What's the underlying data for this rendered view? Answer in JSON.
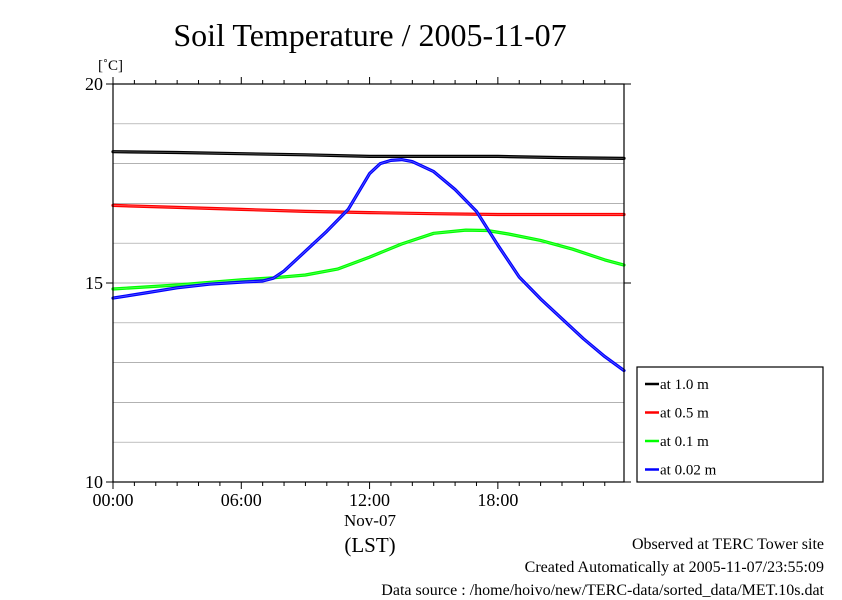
{
  "chart_data": {
    "type": "line",
    "title": "Soil Temperature / 2005-11-07",
    "ylabel": "[˚C]",
    "xlabel": "(LST)",
    "date_label": "Nov-07",
    "ylim": [
      10,
      20
    ],
    "yticks": [
      10,
      15,
      20
    ],
    "ygrid": [
      11,
      12,
      13,
      14,
      16,
      17,
      18,
      19
    ],
    "xlim": [
      0,
      23.9
    ],
    "xticks": [
      {
        "hour": 0,
        "label": "00:00"
      },
      {
        "hour": 6,
        "label": "06:00"
      },
      {
        "hour": 12,
        "label": "12:00"
      },
      {
        "hour": 18,
        "label": "18:00"
      }
    ],
    "legend_position": "right",
    "series": [
      {
        "name": "at 1.0 m",
        "color": "#000000",
        "x": [
          0,
          3,
          6,
          9,
          12,
          15,
          18,
          21,
          23.9
        ],
        "y": [
          18.3,
          18.28,
          18.25,
          18.22,
          18.18,
          18.18,
          18.18,
          18.15,
          18.13
        ]
      },
      {
        "name": "at 0.5 m",
        "color": "#ff0000",
        "x": [
          0,
          3,
          6,
          9,
          12,
          15,
          18,
          21,
          23.9
        ],
        "y": [
          16.95,
          16.9,
          16.85,
          16.8,
          16.77,
          16.74,
          16.72,
          16.72,
          16.72
        ]
      },
      {
        "name": "at 0.1 m",
        "color": "#00ff00",
        "x": [
          0,
          3,
          6,
          7.5,
          9,
          10.5,
          12,
          13.5,
          15,
          16.5,
          17.5,
          18.5,
          20,
          21.5,
          23,
          23.9
        ],
        "y": [
          14.85,
          14.95,
          15.08,
          15.13,
          15.2,
          15.35,
          15.65,
          15.98,
          16.25,
          16.33,
          16.32,
          16.23,
          16.07,
          15.85,
          15.58,
          15.45
        ]
      },
      {
        "name": "at 0.02 m",
        "color": "#0000ff",
        "x": [
          0,
          1.5,
          3,
          4.5,
          6,
          7,
          7.5,
          8,
          9,
          10,
          11,
          12,
          12.5,
          13,
          13.5,
          14,
          15,
          16,
          17,
          18,
          19,
          20,
          21,
          22,
          23,
          23.9
        ],
        "y": [
          14.62,
          14.75,
          14.88,
          14.97,
          15.02,
          15.05,
          15.12,
          15.3,
          15.8,
          16.3,
          16.85,
          17.75,
          18.0,
          18.08,
          18.1,
          18.05,
          17.8,
          17.35,
          16.8,
          15.95,
          15.15,
          14.6,
          14.1,
          13.6,
          13.15,
          12.8
        ]
      }
    ]
  },
  "footer": {
    "line1": "Observed at TERC Tower site",
    "line2": "Created Automatically at 2005-11-07/23:55:09",
    "line3": "Data source : /home/hoivo/new/TERC-data/sorted_data/MET.10s.dat"
  }
}
